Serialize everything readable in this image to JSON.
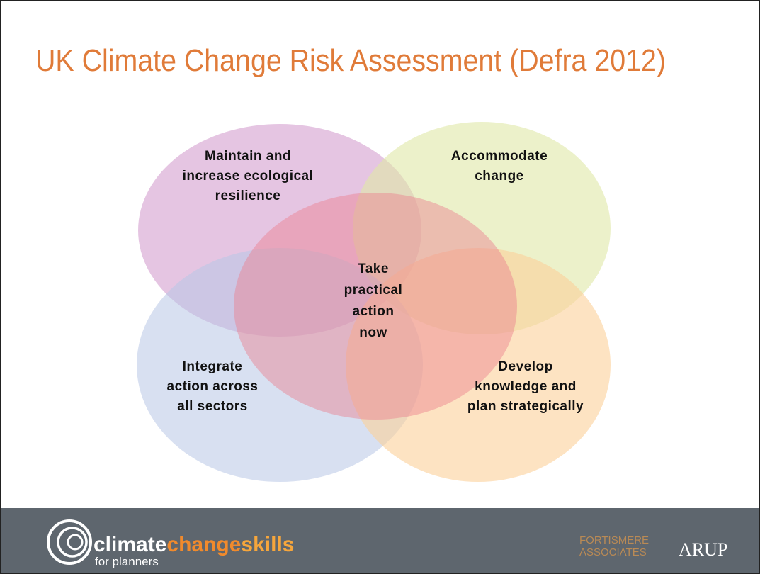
{
  "header": {
    "title": "UK Climate Change Risk Assessment (Defra 2012)"
  },
  "nodes": [
    {
      "lines": [
        "Maintain and",
        "increase ecological",
        "resilience"
      ]
    },
    {
      "lines": [
        "Accommodate",
        "change"
      ]
    },
    {
      "lines": [
        "Integrate",
        "action across",
        "all sectors"
      ]
    },
    {
      "lines": [
        "Develop",
        "knowledge and",
        "plan strategically"
      ]
    },
    {
      "lines": [
        "Take",
        "practical",
        "action",
        "now"
      ]
    }
  ],
  "footer": {
    "logo": {
      "parts": [
        "climate",
        "change",
        "skills"
      ],
      "tagline": "for planners"
    },
    "partners": [
      {
        "lines": [
          "FORTISMERE",
          "ASSOCIATES"
        ]
      },
      {
        "lines": [
          "ARUP"
        ]
      }
    ]
  }
}
